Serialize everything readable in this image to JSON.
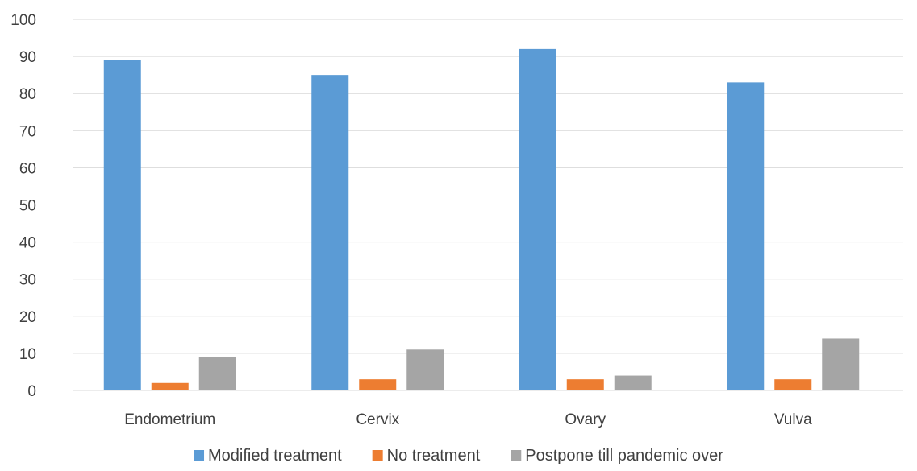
{
  "chart_data": {
    "type": "bar",
    "title": "",
    "xlabel": "",
    "ylabel": "",
    "ylim": [
      0,
      100
    ],
    "yticks": [
      0,
      10,
      20,
      30,
      40,
      50,
      60,
      70,
      80,
      90,
      100
    ],
    "grid": true,
    "legend_position": "bottom",
    "categories": [
      "Endometrium",
      "Cervix",
      "Ovary",
      "Vulva"
    ],
    "series": [
      {
        "name": "Modified treatment",
        "color": "#5B9BD5",
        "values": [
          89,
          85,
          92,
          83
        ]
      },
      {
        "name": "No treatment",
        "color": "#ED7D31",
        "values": [
          2,
          3,
          3,
          3
        ]
      },
      {
        "name": "Postpone till pandemic over",
        "color": "#A5A5A5",
        "values": [
          9,
          11,
          4,
          14
        ]
      }
    ]
  }
}
